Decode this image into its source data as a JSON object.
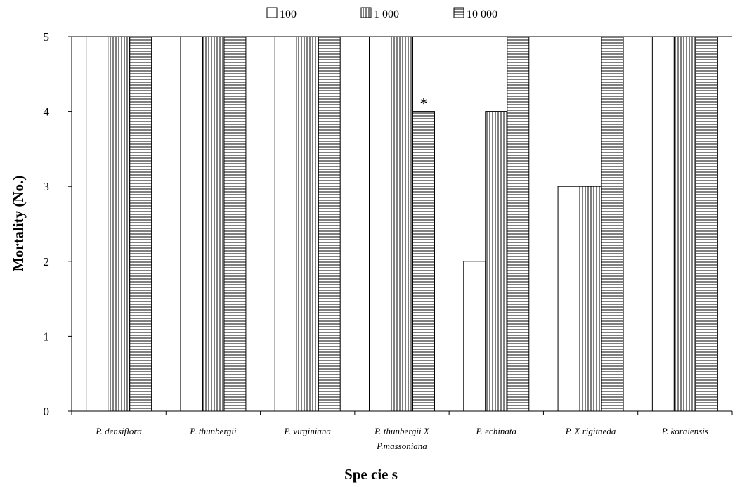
{
  "chart_data": {
    "type": "bar",
    "title": "",
    "xlabel": "Spe cie s",
    "ylabel": "Mortality (No.)",
    "ylim": [
      0,
      5
    ],
    "yticks": [
      "0",
      "1",
      "2",
      "3",
      "4",
      "5"
    ],
    "grid": false,
    "legend_position": "top",
    "categories": [
      [
        "P. densiflora"
      ],
      [
        "P. thunbergii"
      ],
      [
        "P. virginiana"
      ],
      [
        "P. thunbergii X",
        "P.massoniana"
      ],
      [
        "P. echinata"
      ],
      [
        "P. X rigitaeda"
      ],
      [
        "P. koraiensis"
      ]
    ],
    "series": [
      {
        "name": "100",
        "pattern": "empty",
        "values": [
          5,
          5,
          5,
          5,
          2,
          3,
          5
        ]
      },
      {
        "name": "1 000",
        "pattern": "vertical",
        "values": [
          5,
          5,
          5,
          5,
          4,
          3,
          5
        ]
      },
      {
        "name": "10 000",
        "pattern": "horizontal",
        "values": [
          5,
          5,
          5,
          4,
          5,
          5,
          5
        ]
      }
    ],
    "annotations": [
      {
        "text": "*",
        "category_index": 3,
        "series_index": 2
      }
    ]
  },
  "colors": {
    "bar_fill": "#ffffff",
    "stroke": "#000000"
  }
}
